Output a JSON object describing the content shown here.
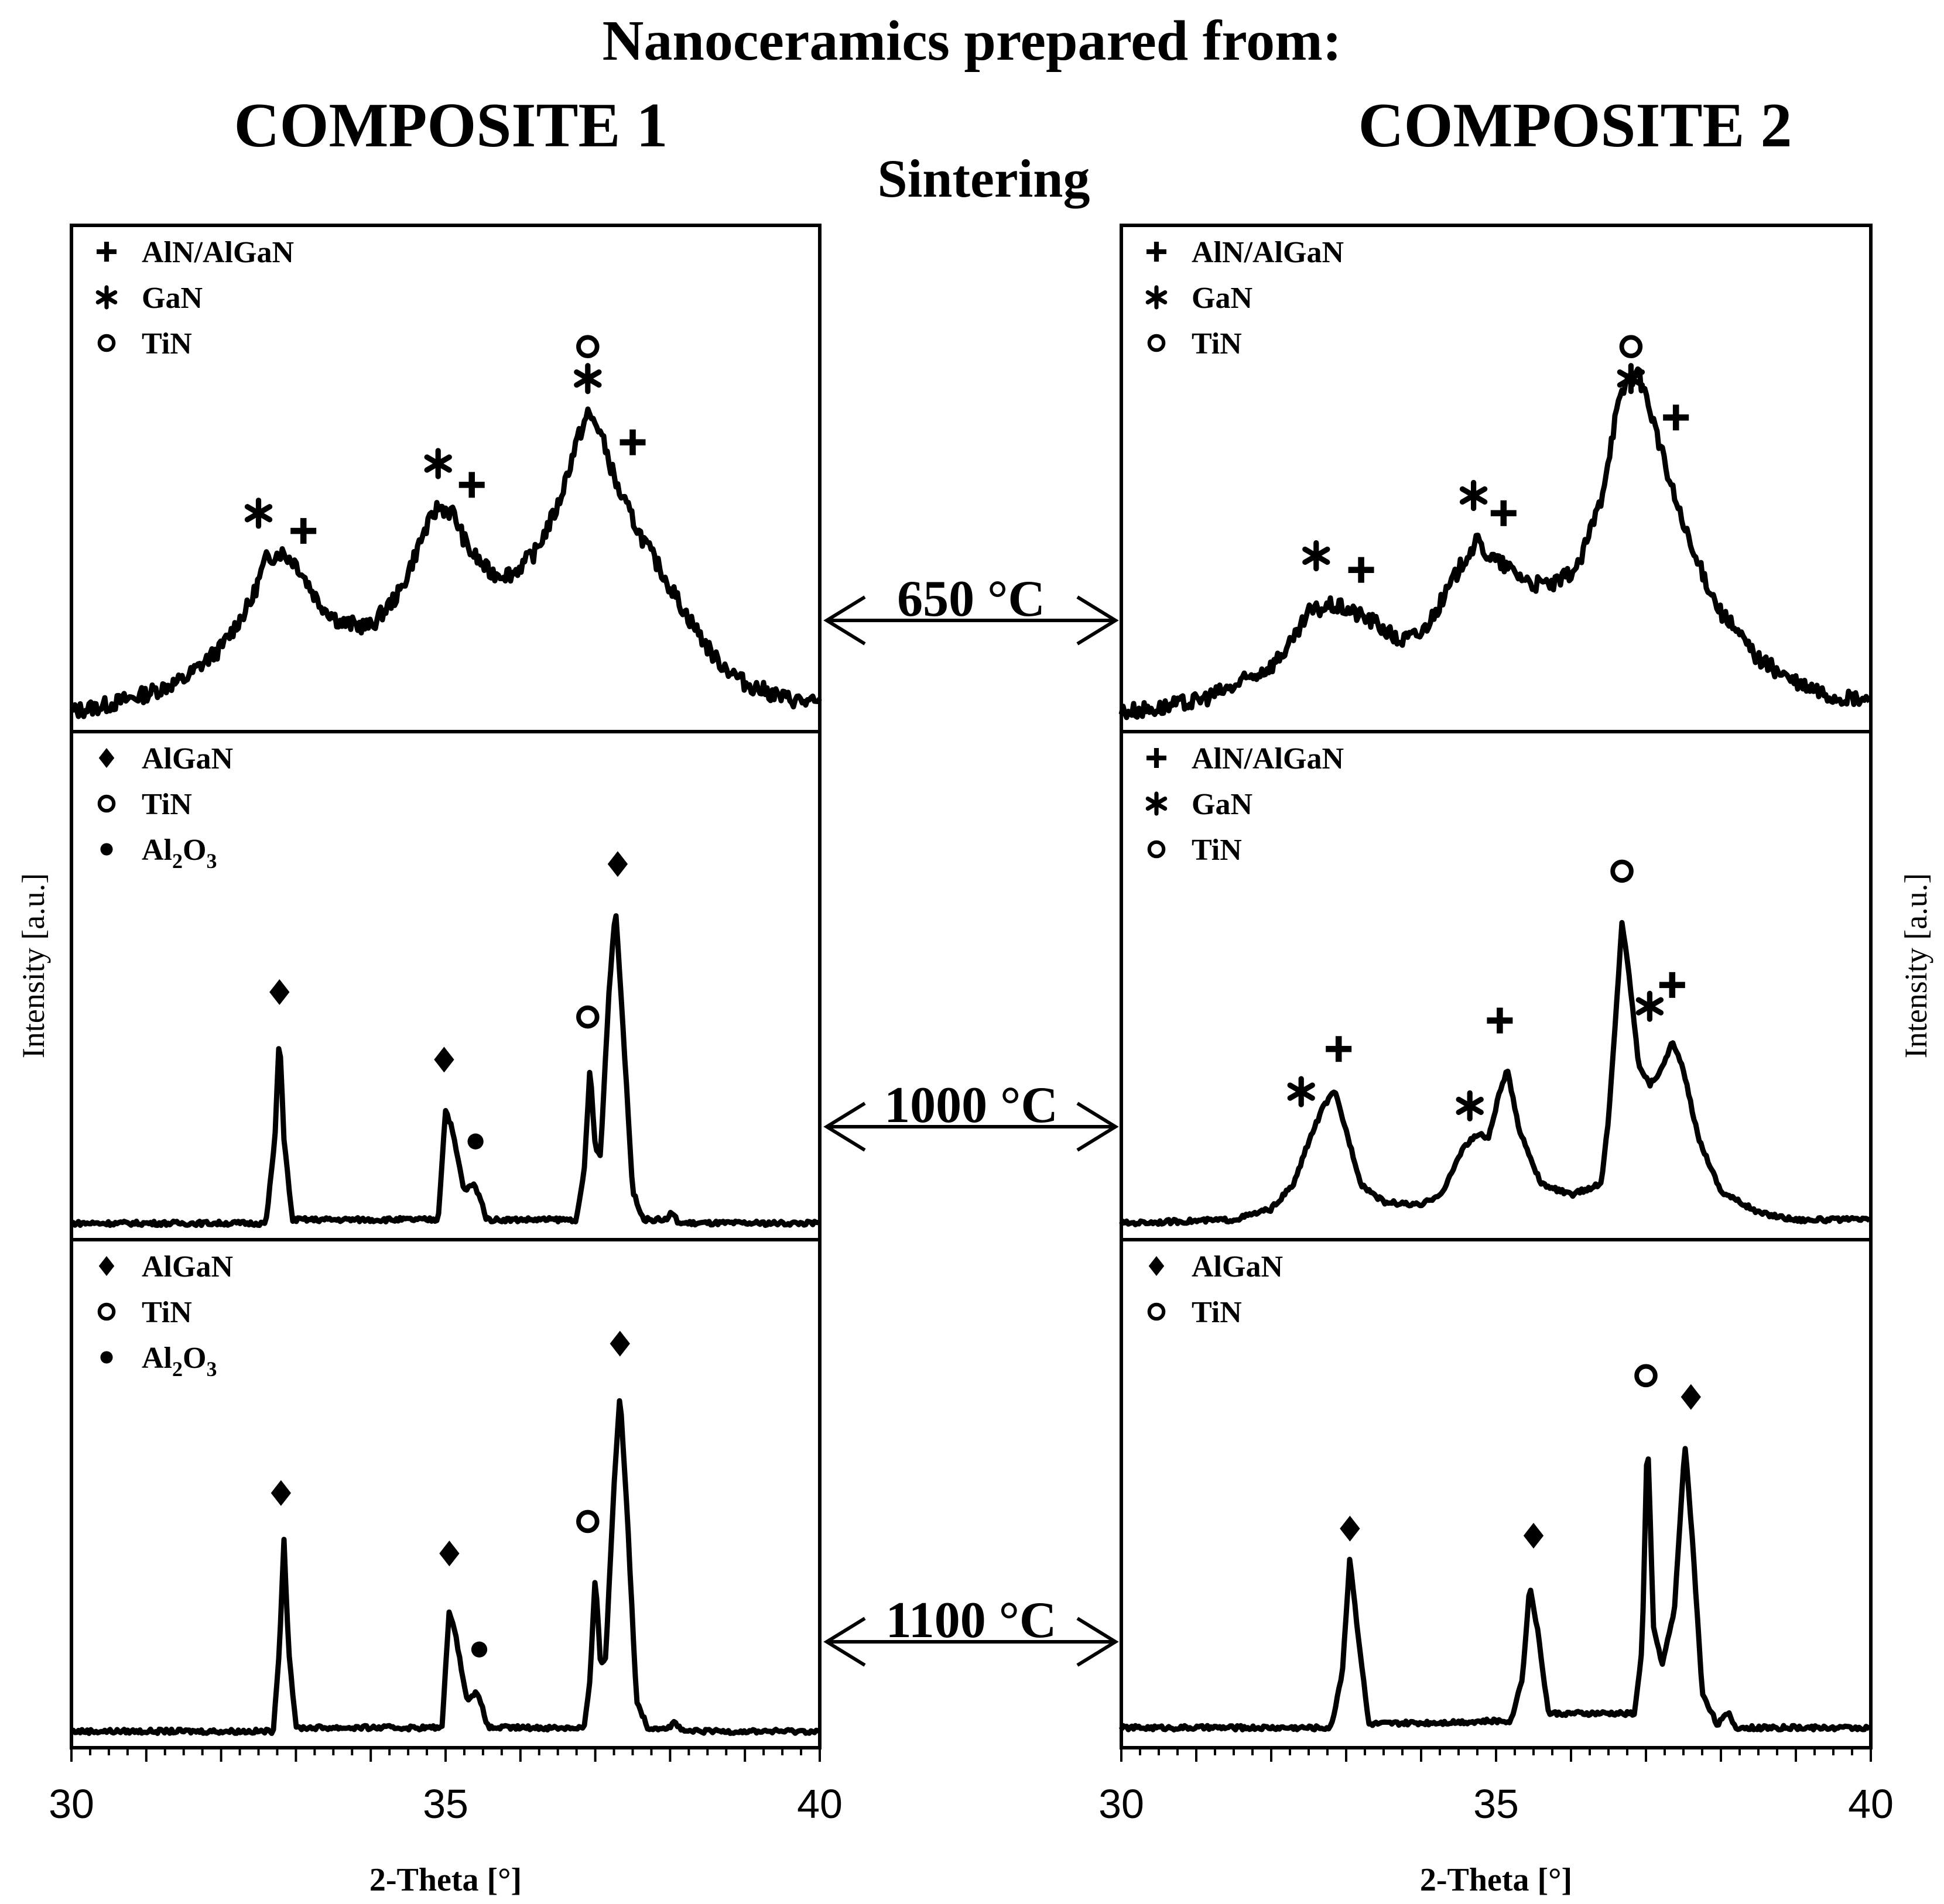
{
  "header": {
    "title": "Nanoceramics prepared from:",
    "left_column": "COMPOSITE 1",
    "right_column": "COMPOSITE 2",
    "subtitle": "Sintering"
  },
  "temperatures": [
    "650 °C",
    "1000 °C",
    "1100 °C"
  ],
  "chart_data": [
    {
      "type": "line",
      "composite": "COMPOSITE 1",
      "temperature": "650 °C",
      "xlabel": "2-Theta [°]",
      "ylabel": "Intensity [a.u.]",
      "xlim": [
        30,
        40
      ],
      "x_ticks": [
        "30",
        "35",
        "40"
      ],
      "legend": [
        {
          "marker": "plus",
          "label": "AlN/AlGaN"
        },
        {
          "marker": "asterisk",
          "label": "GaN"
        },
        {
          "marker": "circle",
          "label": "TiN"
        }
      ],
      "series": [
        {
          "name": "XRD pattern",
          "points": [
            [
              30.0,
              0.02
            ],
            [
              30.5,
              0.04
            ],
            [
              31.0,
              0.07
            ],
            [
              31.5,
              0.11
            ],
            [
              32.0,
              0.2
            ],
            [
              32.4,
              0.33
            ],
            [
              32.6,
              0.45
            ],
            [
              32.8,
              0.47
            ],
            [
              33.0,
              0.44
            ],
            [
              33.3,
              0.33
            ],
            [
              33.6,
              0.27
            ],
            [
              34.0,
              0.26
            ],
            [
              34.4,
              0.36
            ],
            [
              34.7,
              0.52
            ],
            [
              34.9,
              0.6
            ],
            [
              35.1,
              0.58
            ],
            [
              35.3,
              0.48
            ],
            [
              35.6,
              0.41
            ],
            [
              35.9,
              0.41
            ],
            [
              36.2,
              0.47
            ],
            [
              36.5,
              0.6
            ],
            [
              36.75,
              0.78
            ],
            [
              36.9,
              0.86
            ],
            [
              37.05,
              0.82
            ],
            [
              37.3,
              0.65
            ],
            [
              37.6,
              0.52
            ],
            [
              37.9,
              0.41
            ],
            [
              38.2,
              0.3
            ],
            [
              38.6,
              0.17
            ],
            [
              39.0,
              0.1
            ],
            [
              39.5,
              0.06
            ],
            [
              40.0,
              0.04
            ]
          ]
        }
      ],
      "markers": [
        {
          "symbol": "asterisk",
          "x": 32.5,
          "y": 0.58
        },
        {
          "symbol": "plus",
          "x": 33.1,
          "y": 0.53
        },
        {
          "symbol": "asterisk",
          "x": 34.9,
          "y": 0.72
        },
        {
          "symbol": "plus",
          "x": 35.35,
          "y": 0.66
        },
        {
          "symbol": "circle",
          "x": 36.9,
          "y": 1.05
        },
        {
          "symbol": "asterisk",
          "x": 36.9,
          "y": 0.96
        },
        {
          "symbol": "plus",
          "x": 37.5,
          "y": 0.78
        }
      ]
    },
    {
      "type": "line",
      "composite": "COMPOSITE 1",
      "temperature": "1000 °C",
      "xlabel": "2-Theta [°]",
      "ylabel": "Intensity [a.u.]",
      "xlim": [
        30,
        40
      ],
      "x_ticks": [
        "30",
        "35",
        "40"
      ],
      "legend": [
        {
          "marker": "diamond",
          "label": "AlGaN"
        },
        {
          "marker": "circle",
          "label": "TiN"
        },
        {
          "marker": "dot",
          "label": "Al₂O₃"
        }
      ],
      "series": [
        {
          "name": "XRD pattern",
          "points": [
            [
              30.0,
              0.01
            ],
            [
              32.6,
              0.01
            ],
            [
              32.72,
              0.25
            ],
            [
              32.78,
              0.55
            ],
            [
              32.84,
              0.25
            ],
            [
              32.95,
              0.02
            ],
            [
              34.9,
              0.02
            ],
            [
              35.0,
              0.33
            ],
            [
              35.08,
              0.28
            ],
            [
              35.25,
              0.1
            ],
            [
              35.37,
              0.12
            ],
            [
              35.45,
              0.09
            ],
            [
              35.55,
              0.02
            ],
            [
              36.75,
              0.02
            ],
            [
              36.85,
              0.15
            ],
            [
              36.93,
              0.45
            ],
            [
              37.0,
              0.22
            ],
            [
              37.07,
              0.2
            ],
            [
              37.18,
              0.65
            ],
            [
              37.27,
              0.9
            ],
            [
              37.36,
              0.6
            ],
            [
              37.5,
              0.1
            ],
            [
              37.65,
              0.02
            ],
            [
              37.95,
              0.02
            ],
            [
              38.02,
              0.04
            ],
            [
              38.12,
              0.01
            ],
            [
              40.0,
              0.01
            ]
          ]
        }
      ],
      "markers": [
        {
          "symbol": "diamond",
          "x": 32.78,
          "y": 0.66
        },
        {
          "symbol": "diamond",
          "x": 34.98,
          "y": 0.47
        },
        {
          "symbol": "dot",
          "x": 35.4,
          "y": 0.24
        },
        {
          "symbol": "circle",
          "x": 36.9,
          "y": 0.59
        },
        {
          "symbol": "diamond",
          "x": 37.3,
          "y": 1.02
        }
      ]
    },
    {
      "type": "line",
      "composite": "COMPOSITE 1",
      "temperature": "1100 °C",
      "xlabel": "2-Theta [°]",
      "ylabel": "Intensity [a.u.]",
      "xlim": [
        30,
        40
      ],
      "x_ticks": [
        "30",
        "35",
        "40"
      ],
      "legend": [
        {
          "marker": "diamond",
          "label": "AlGaN"
        },
        {
          "marker": "circle",
          "label": "TiN"
        },
        {
          "marker": "dot",
          "label": "Al₂O₃"
        }
      ],
      "series": [
        {
          "name": "XRD pattern",
          "points": [
            [
              30.0,
              0.01
            ],
            [
              32.7,
              0.01
            ],
            [
              32.78,
              0.25
            ],
            [
              32.84,
              0.55
            ],
            [
              32.9,
              0.25
            ],
            [
              33.0,
              0.02
            ],
            [
              34.95,
              0.02
            ],
            [
              35.05,
              0.35
            ],
            [
              35.12,
              0.3
            ],
            [
              35.28,
              0.1
            ],
            [
              35.4,
              0.12
            ],
            [
              35.47,
              0.09
            ],
            [
              35.57,
              0.02
            ],
            [
              36.85,
              0.02
            ],
            [
              36.93,
              0.15
            ],
            [
              37.0,
              0.45
            ],
            [
              37.07,
              0.2
            ],
            [
              37.14,
              0.22
            ],
            [
              37.25,
              0.7
            ],
            [
              37.33,
              0.96
            ],
            [
              37.42,
              0.65
            ],
            [
              37.55,
              0.1
            ],
            [
              37.7,
              0.02
            ],
            [
              38.0,
              0.02
            ],
            [
              38.06,
              0.04
            ],
            [
              38.15,
              0.01
            ],
            [
              40.0,
              0.01
            ]
          ]
        }
      ],
      "markers": [
        {
          "symbol": "diamond",
          "x": 32.8,
          "y": 0.68
        },
        {
          "symbol": "diamond",
          "x": 35.05,
          "y": 0.51
        },
        {
          "symbol": "dot",
          "x": 35.45,
          "y": 0.24
        },
        {
          "symbol": "circle",
          "x": 36.9,
          "y": 0.6
        },
        {
          "symbol": "diamond",
          "x": 37.33,
          "y": 1.1
        }
      ]
    },
    {
      "type": "line",
      "composite": "COMPOSITE 2",
      "temperature": "650 °C",
      "xlabel": "2-Theta [°]",
      "ylabel": "Intensity [a.u.]",
      "xlim": [
        30,
        40
      ],
      "x_ticks": [
        "30",
        "35",
        "40"
      ],
      "legend": [
        {
          "marker": "plus",
          "label": "AlN/AlGaN"
        },
        {
          "marker": "asterisk",
          "label": "GaN"
        },
        {
          "marker": "circle",
          "label": "TiN"
        }
      ],
      "series": [
        {
          "name": "XRD pattern",
          "points": [
            [
              30.0,
              0.02
            ],
            [
              30.5,
              0.03
            ],
            [
              31.0,
              0.05
            ],
            [
              31.5,
              0.09
            ],
            [
              32.0,
              0.15
            ],
            [
              32.3,
              0.22
            ],
            [
              32.5,
              0.3
            ],
            [
              32.8,
              0.32
            ],
            [
              33.0,
              0.31
            ],
            [
              33.4,
              0.27
            ],
            [
              33.7,
              0.22
            ],
            [
              34.0,
              0.24
            ],
            [
              34.3,
              0.34
            ],
            [
              34.6,
              0.46
            ],
            [
              34.75,
              0.5
            ],
            [
              34.9,
              0.46
            ],
            [
              35.2,
              0.42
            ],
            [
              35.5,
              0.38
            ],
            [
              35.8,
              0.38
            ],
            [
              36.1,
              0.43
            ],
            [
              36.4,
              0.62
            ],
            [
              36.6,
              0.86
            ],
            [
              36.75,
              0.96
            ],
            [
              36.9,
              0.97
            ],
            [
              37.05,
              0.88
            ],
            [
              37.3,
              0.68
            ],
            [
              37.6,
              0.48
            ],
            [
              38.0,
              0.3
            ],
            [
              38.5,
              0.17
            ],
            [
              39.0,
              0.1
            ],
            [
              39.5,
              0.06
            ],
            [
              40.0,
              0.05
            ]
          ]
        }
      ],
      "markers": [
        {
          "symbol": "asterisk",
          "x": 32.6,
          "y": 0.46
        },
        {
          "symbol": "plus",
          "x": 33.2,
          "y": 0.42
        },
        {
          "symbol": "asterisk",
          "x": 34.7,
          "y": 0.63
        },
        {
          "symbol": "plus",
          "x": 35.1,
          "y": 0.58
        },
        {
          "symbol": "circle",
          "x": 36.8,
          "y": 1.05
        },
        {
          "symbol": "asterisk",
          "x": 36.8,
          "y": 0.96
        },
        {
          "symbol": "plus",
          "x": 37.4,
          "y": 0.85
        }
      ]
    },
    {
      "type": "line",
      "composite": "COMPOSITE 2",
      "temperature": "1000 °C",
      "xlabel": "2-Theta [°]",
      "ylabel": "Intensity [a.u.]",
      "xlim": [
        30,
        40
      ],
      "x_ticks": [
        "30",
        "35",
        "40"
      ],
      "legend": [
        {
          "marker": "plus",
          "label": "AlN/AlGaN"
        },
        {
          "marker": "asterisk",
          "label": "GaN"
        },
        {
          "marker": "circle",
          "label": "TiN"
        }
      ],
      "series": [
        {
          "name": "XRD pattern",
          "points": [
            [
              30.0,
              0.01
            ],
            [
              31.5,
              0.02
            ],
            [
              32.0,
              0.05
            ],
            [
              32.3,
              0.12
            ],
            [
              32.5,
              0.24
            ],
            [
              32.7,
              0.34
            ],
            [
              32.85,
              0.38
            ],
            [
              33.0,
              0.27
            ],
            [
              33.2,
              0.12
            ],
            [
              33.5,
              0.07
            ],
            [
              34.0,
              0.06
            ],
            [
              34.3,
              0.1
            ],
            [
              34.55,
              0.22
            ],
            [
              34.75,
              0.26
            ],
            [
              34.9,
              0.25
            ],
            [
              35.05,
              0.38
            ],
            [
              35.15,
              0.44
            ],
            [
              35.3,
              0.28
            ],
            [
              35.6,
              0.12
            ],
            [
              36.0,
              0.09
            ],
            [
              36.4,
              0.12
            ],
            [
              36.5,
              0.3
            ],
            [
              36.6,
              0.6
            ],
            [
              36.68,
              0.86
            ],
            [
              36.78,
              0.7
            ],
            [
              36.9,
              0.46
            ],
            [
              37.05,
              0.4
            ],
            [
              37.2,
              0.44
            ],
            [
              37.35,
              0.52
            ],
            [
              37.5,
              0.44
            ],
            [
              37.7,
              0.25
            ],
            [
              38.0,
              0.1
            ],
            [
              38.5,
              0.04
            ],
            [
              39.0,
              0.02
            ],
            [
              40.0,
              0.02
            ]
          ]
        }
      ],
      "markers": [
        {
          "symbol": "asterisk",
          "x": 32.4,
          "y": 0.38
        },
        {
          "symbol": "plus",
          "x": 32.9,
          "y": 0.5
        },
        {
          "symbol": "asterisk",
          "x": 34.65,
          "y": 0.34
        },
        {
          "symbol": "plus",
          "x": 35.05,
          "y": 0.58
        },
        {
          "symbol": "circle",
          "x": 36.68,
          "y": 1.0
        },
        {
          "symbol": "asterisk",
          "x": 37.05,
          "y": 0.62
        },
        {
          "symbol": "plus",
          "x": 37.35,
          "y": 0.68
        }
      ]
    },
    {
      "type": "line",
      "composite": "COMPOSITE 2",
      "temperature": "1100 °C",
      "xlabel": "2-Theta [°]",
      "ylabel": "Intensity [a.u.]",
      "xlim": [
        30,
        40
      ],
      "x_ticks": [
        "30",
        "35",
        "40"
      ],
      "legend": [
        {
          "marker": "diamond",
          "label": "AlGaN"
        },
        {
          "marker": "circle",
          "label": "TiN"
        }
      ],
      "series": [
        {
          "name": "XRD pattern",
          "points": [
            [
              30.0,
              0.02
            ],
            [
              32.8,
              0.02
            ],
            [
              32.95,
              0.18
            ],
            [
              33.05,
              0.5
            ],
            [
              33.15,
              0.3
            ],
            [
              33.3,
              0.03
            ],
            [
              35.2,
              0.04
            ],
            [
              35.35,
              0.16
            ],
            [
              35.45,
              0.42
            ],
            [
              35.55,
              0.3
            ],
            [
              35.7,
              0.06
            ],
            [
              36.85,
              0.06
            ],
            [
              36.95,
              0.25
            ],
            [
              37.02,
              0.86
            ],
            [
              37.1,
              0.3
            ],
            [
              37.22,
              0.2
            ],
            [
              37.38,
              0.35
            ],
            [
              37.52,
              0.82
            ],
            [
              37.62,
              0.55
            ],
            [
              37.75,
              0.12
            ],
            [
              37.95,
              0.03
            ],
            [
              38.1,
              0.06
            ],
            [
              38.2,
              0.02
            ],
            [
              40.0,
              0.02
            ]
          ]
        }
      ],
      "markers": [
        {
          "symbol": "diamond",
          "x": 33.05,
          "y": 0.58
        },
        {
          "symbol": "diamond",
          "x": 35.5,
          "y": 0.56
        },
        {
          "symbol": "circle",
          "x": 37.0,
          "y": 1.01
        },
        {
          "symbol": "diamond",
          "x": 37.6,
          "y": 0.95
        }
      ]
    }
  ]
}
